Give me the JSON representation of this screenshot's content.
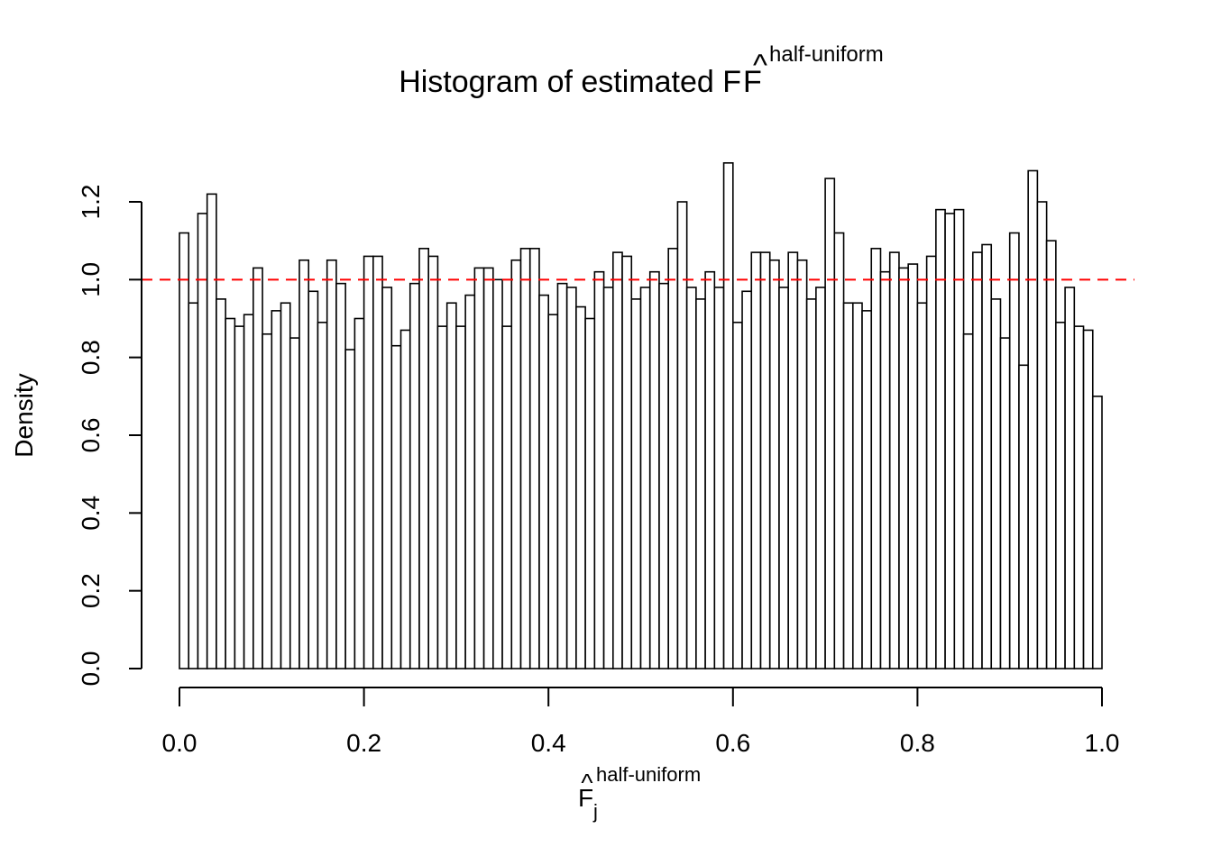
{
  "chart_data": {
    "type": "bar",
    "title_main": "Histogram of estimated F",
    "title_hat": "^",
    "title_sup": "half-uniform",
    "xlabel_main": "F",
    "xlabel_hat": "^",
    "xlabel_sup": "half-uniform",
    "xlabel_sub": "j",
    "ylabel": "Density",
    "xlim": [
      0,
      1
    ],
    "ylim": [
      0,
      1.3
    ],
    "x_ticks": [
      "0.0",
      "0.2",
      "0.4",
      "0.6",
      "0.8",
      "1.0"
    ],
    "y_ticks": [
      "0.0",
      "0.2",
      "0.4",
      "0.6",
      "0.8",
      "1.0",
      "1.2"
    ],
    "bin_width": 0.01,
    "bin_start": 0,
    "values": [
      1.12,
      0.94,
      1.17,
      1.22,
      0.95,
      0.9,
      0.88,
      0.91,
      1.03,
      0.86,
      0.92,
      0.94,
      0.85,
      1.05,
      0.97,
      0.89,
      1.05,
      0.99,
      0.82,
      0.9,
      1.06,
      1.06,
      0.98,
      0.83,
      0.87,
      0.99,
      1.08,
      1.06,
      0.88,
      0.94,
      0.88,
      0.96,
      1.03,
      1.03,
      1.0,
      0.88,
      1.05,
      1.08,
      1.08,
      0.96,
      0.91,
      0.99,
      0.98,
      0.93,
      0.9,
      1.02,
      0.98,
      1.07,
      1.06,
      0.95,
      0.98,
      1.02,
      0.99,
      1.08,
      1.2,
      0.98,
      0.95,
      1.02,
      0.98,
      1.3,
      0.89,
      0.97,
      1.07,
      1.07,
      1.05,
      0.98,
      1.07,
      1.05,
      0.95,
      0.98,
      1.26,
      1.12,
      0.94,
      0.94,
      0.92,
      1.08,
      1.02,
      1.07,
      1.03,
      1.04,
      0.94,
      1.06,
      1.18,
      1.17,
      1.18,
      0.86,
      1.07,
      1.09,
      0.95,
      0.85,
      1.12,
      0.78,
      1.28,
      1.2,
      1.1,
      0.89,
      0.98,
      0.88,
      0.87,
      0.7
    ],
    "reference_line": {
      "y": 1.0,
      "color": "#ff0000",
      "style": "dashed"
    },
    "bar_fill": "#ffffff",
    "bar_stroke": "#000000"
  }
}
